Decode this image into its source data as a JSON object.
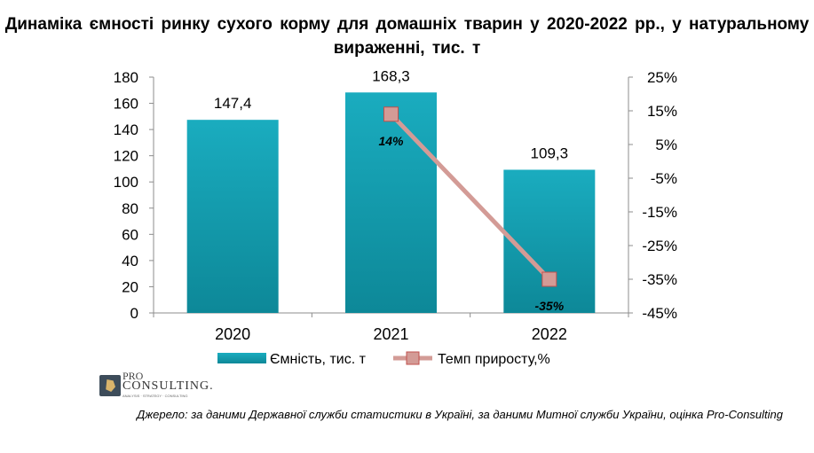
{
  "title": "Динаміка  ємності  ринку  сухого  корму  для домашніх  тварин у 2020-2022 рр., у натуральному  вираженні,  тис. т",
  "source": "Джерело: за даними Державної служби статистики в Україні, за даними Митної служби України, оцінка Pro-Consulting",
  "logo": {
    "line1": "PRO",
    "line2": "CONSULTING.",
    "line3": "ANALYSIS · STRATEGY · CONSULTING"
  },
  "chart_data": {
    "type": "bar",
    "categories": [
      "2020",
      "2021",
      "2022"
    ],
    "series": [
      {
        "name": "Ємність, тис. т",
        "type": "bar",
        "axis": "left",
        "values": [
          147.4,
          168.3,
          109.3
        ],
        "labels": [
          "147,4",
          "168,3",
          "109,3"
        ],
        "color": "#16a2b4"
      },
      {
        "name": "Темп приросту,%",
        "type": "line",
        "axis": "right",
        "points": [
          {
            "category": "2021",
            "value": 14,
            "label": "14%"
          },
          {
            "category": "2022",
            "value": -35,
            "label": "-35%"
          }
        ],
        "color": "#c0504d",
        "line_color": "#d39b96"
      }
    ],
    "y_left": {
      "min": 0,
      "max": 180,
      "ticks": [
        0,
        20,
        40,
        60,
        80,
        100,
        120,
        140,
        160,
        180
      ],
      "tick_labels": [
        "0",
        "20",
        "40",
        "60",
        "80",
        "100",
        "120",
        "140",
        "160",
        "180"
      ]
    },
    "y_right": {
      "min": -45,
      "max": 25,
      "ticks": [
        -45,
        -35,
        -25,
        -15,
        -5,
        5,
        15,
        25
      ],
      "tick_labels": [
        "-45%",
        "-35%",
        "-25%",
        "-15%",
        "-5%",
        "5%",
        "15%",
        "25%"
      ]
    },
    "grid": false,
    "legend_position": "bottom"
  }
}
